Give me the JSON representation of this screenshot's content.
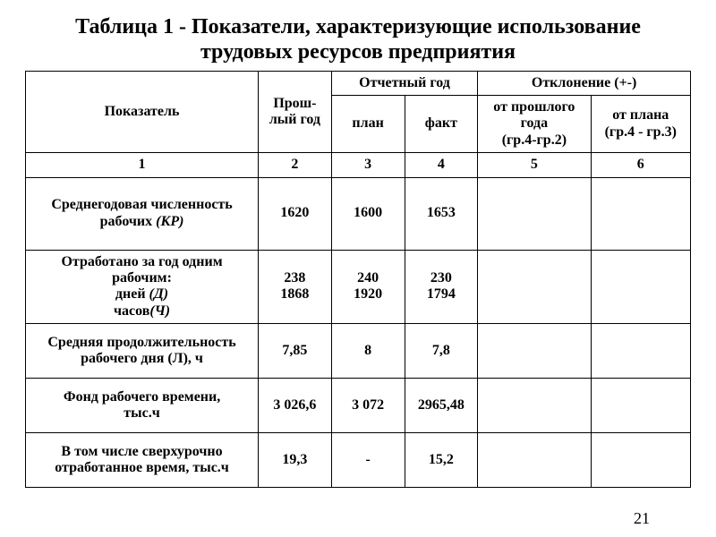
{
  "title_line1": "Таблица 1 -  Показатели, характеризующие использование",
  "title_line2": "трудовых ресурсов предприятия",
  "header": {
    "indicator": "Показатель",
    "last_year": "Прош-\nлый год",
    "report_year": "Отчетный год",
    "plan": "план",
    "fact": "факт",
    "deviation": "Отклонение  (+-)",
    "from_last": "от прошлого\nгода\n(гр.4-гр.2)",
    "from_plan": "от плана\n(гр.4 - гр.3)"
  },
  "colnums": [
    "1",
    "2",
    "3",
    "4",
    "5",
    "6"
  ],
  "rows": [
    {
      "label_html": "Среднегодовая численность<br>рабочих <span class=\"italic\">(КР)</span>",
      "c2": "1620",
      "c3": "1600",
      "c4": "1653",
      "c5": "",
      "c6": ""
    },
    {
      "label_html": "Отработано за год одним<br>рабочим:<br>дней <span class=\"italic\">(Д)</span><br>часов<span class=\"italic\">(Ч)</span>",
      "c2": "238\n1868",
      "c3": "240\n1920",
      "c4": "230\n1794",
      "c5": "",
      "c6": ""
    },
    {
      "label_html": "Средняя продолжительность<br>рабочего дня (Л), ч",
      "c2": "7,85",
      "c3": "8",
      "c4": "7,8",
      "c5": "",
      "c6": ""
    },
    {
      "label_html": "Фонд рабочего времени,<br>тыс.ч",
      "c2": "3 026,6",
      "c3": "3 072",
      "c4": "2965,48",
      "c5": "",
      "c6": ""
    },
    {
      "label_html": "В том числе сверхурочно<br>отработанное время, тыс.ч",
      "c2": "19,3",
      "c3": "-",
      "c4": "15,2",
      "c5": "",
      "c6": ""
    }
  ],
  "page_number": "21",
  "col_widths_pct": [
    35,
    11,
    11,
    11,
    17,
    15
  ]
}
